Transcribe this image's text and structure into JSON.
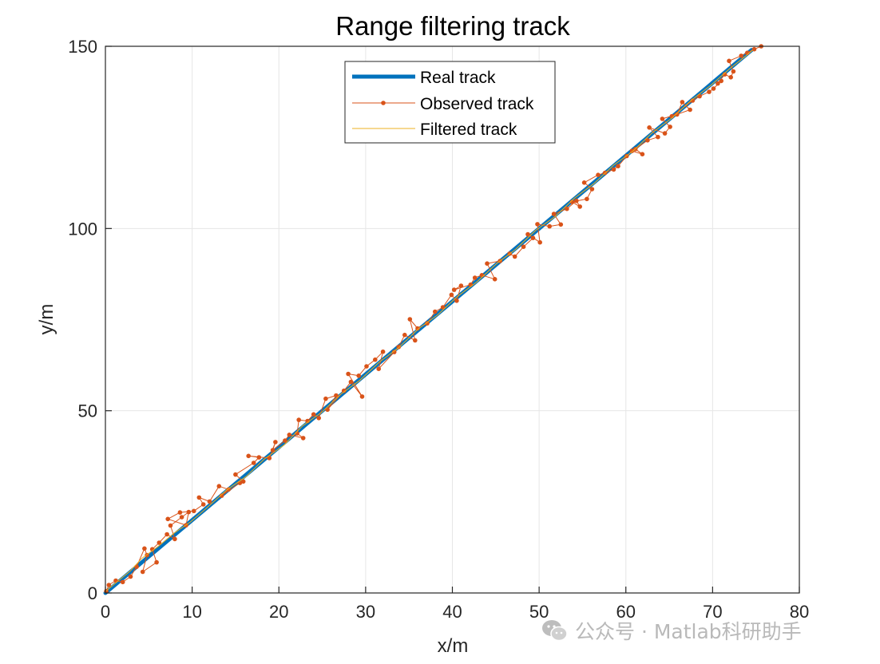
{
  "chart_data": {
    "type": "line",
    "title": "Range filtering track",
    "xlabel": "x/m",
    "ylabel": "y/m",
    "xlim": [
      0,
      80
    ],
    "ylim": [
      0,
      150
    ],
    "xticks": [
      0,
      10,
      20,
      30,
      40,
      50,
      60,
      70,
      80
    ],
    "yticks": [
      0,
      50,
      100,
      150
    ],
    "grid": true,
    "legend": {
      "placement": "top-center",
      "entries": [
        "Real track",
        "Observed track",
        "Filtered track"
      ]
    },
    "series": [
      {
        "name": "Real track",
        "color": "#0072BD",
        "marker": "none",
        "x": [
          0,
          74.5
        ],
        "y": [
          0,
          149
        ]
      },
      {
        "name": "Observed track",
        "color": "#D95319",
        "marker": "dot",
        "x": [
          0.1,
          0.4,
          1.2,
          2.0,
          2.9,
          3.6,
          4.5,
          4.8,
          4.3,
          5.9,
          5.4,
          6.2,
          7.1,
          8.0,
          7.5,
          8.8,
          9.6,
          9.3,
          7.2,
          8.6,
          10.2,
          11.3,
          10.8,
          12.0,
          13.1,
          14.2,
          13.4,
          15.5,
          15.9,
          15.0,
          17.1,
          17.7,
          16.5,
          18.9,
          19.6,
          19.3,
          20.7,
          21.2,
          22.8,
          22.1,
          22.3,
          23.3,
          24.0,
          24.6,
          25.4,
          26.6,
          25.6,
          27.5,
          28.3,
          29.6,
          28.0,
          29.2,
          30.1,
          31.1,
          32.0,
          31.5,
          33.3,
          33.8,
          34.5,
          35.7,
          35.1,
          36.0,
          37.1,
          38.0,
          38.9,
          39.9,
          40.5,
          41.0,
          40.2,
          42.1,
          42.6,
          43.4,
          44.9,
          44.0,
          45.5,
          46.6,
          47.2,
          48.2,
          49.3,
          48.7,
          50.1,
          49.8,
          51.2,
          52.5,
          51.7,
          53.2,
          54.3,
          54.7,
          53.8,
          55.5,
          56.1,
          55.2,
          56.8,
          57.6,
          58.6,
          59.1,
          60.1,
          60.7,
          61.9,
          61.1,
          62.5,
          63.7,
          62.7,
          64.5,
          65.1,
          64.2,
          65.9,
          66.5,
          67.4,
          65.3,
          67.7,
          68.5,
          69.6,
          70.1,
          71.0,
          70.6,
          71.4,
          72.1,
          72.4,
          71.9,
          73.3,
          74.0,
          74.8,
          75.6
        ],
        "y": [
          0.5,
          2.2,
          3.4,
          3.0,
          4.5,
          7.2,
          12.2,
          10.4,
          5.8,
          8.4,
          12.0,
          13.8,
          16.1,
          14.8,
          18.5,
          20.8,
          22.2,
          18.6,
          20.3,
          22.1,
          22.5,
          24.3,
          26.2,
          25.1,
          29.3,
          28.4,
          26.7,
          30.2,
          30.6,
          32.5,
          35.7,
          37.2,
          37.6,
          37.0,
          41.4,
          39.2,
          41.8,
          43.4,
          42.5,
          43.8,
          47.5,
          47.2,
          49.0,
          48.0,
          53.3,
          54.2,
          50.3,
          55.5,
          57.9,
          53.9,
          60.1,
          59.6,
          62.2,
          64.0,
          66.2,
          61.5,
          66.1,
          67.5,
          70.8,
          69.3,
          75.1,
          72.6,
          74.0,
          77.2,
          78.4,
          81.8,
          80.2,
          84.3,
          83.2,
          84.6,
          86.5,
          87.2,
          86.1,
          90.4,
          91.1,
          93.1,
          92.3,
          95.0,
          97.4,
          98.4,
          96.2,
          101.2,
          100.6,
          101.1,
          104.0,
          105.4,
          107.6,
          106.0,
          107.3,
          108.1,
          110.8,
          112.6,
          114.7,
          115.3,
          116.2,
          117.1,
          119.9,
          121.3,
          120.4,
          121.8,
          124.2,
          125.1,
          127.7,
          126.1,
          127.9,
          130.1,
          131.3,
          134.7,
          132.6,
          130.8,
          135.1,
          136.3,
          137.5,
          138.4,
          140.5,
          139.8,
          142.3,
          141.5,
          143.1,
          146.0,
          147.4,
          148.2,
          149.2,
          150.0
        ]
      },
      {
        "name": "Filtered track",
        "color": "#EDB120",
        "marker": "none",
        "x": [
          0.1,
          1.2,
          2.9,
          4.2,
          6.1,
          7.9,
          9.8,
          11.9,
          14.0,
          16.2,
          18.3,
          20.6,
          22.7,
          25.0,
          27.1,
          29.3,
          31.6,
          33.8,
          36.1,
          38.3,
          40.6,
          42.8,
          45.1,
          47.3,
          49.6,
          51.8,
          54.1,
          56.3,
          58.6,
          60.8,
          63.1,
          65.3,
          67.6,
          69.8,
          72.1,
          73.7,
          74.6
        ],
        "y": [
          0.6,
          2.8,
          6.1,
          9.5,
          12.8,
          16.4,
          19.5,
          23.8,
          28.3,
          31.9,
          36.7,
          40.6,
          45.8,
          49.7,
          54.5,
          58.3,
          63.4,
          67.3,
          72.5,
          76.3,
          81.4,
          85.3,
          90.4,
          94.3,
          99.5,
          103.2,
          108.4,
          112.3,
          117.4,
          121.2,
          126.4,
          130.3,
          135.3,
          139.3,
          144.1,
          147.1,
          148.9
        ]
      }
    ]
  },
  "watermark": {
    "icon": "wechat-icon",
    "text": "公众号 · Matlab科研助手"
  }
}
